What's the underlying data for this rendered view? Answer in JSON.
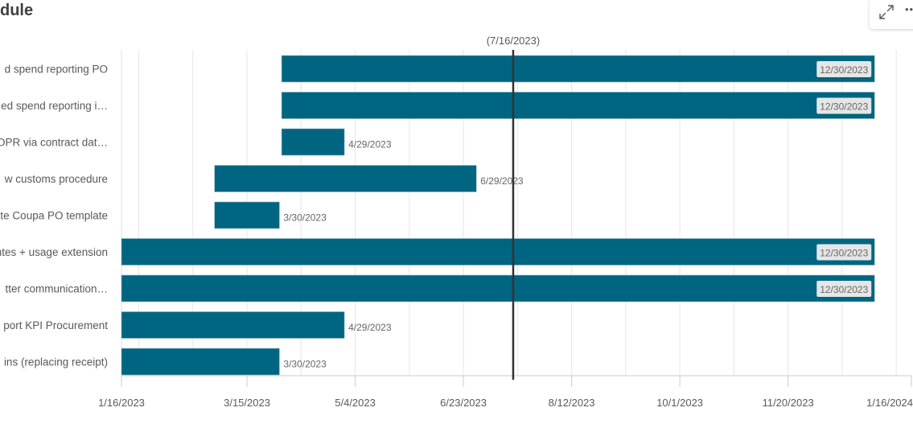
{
  "header": {
    "title": "dule"
  },
  "toolbar": {
    "icons": [
      "expand-icon",
      "more-icon"
    ],
    "more_glyph": "••"
  },
  "colors": {
    "bar": "#006580",
    "today_line": "#333333",
    "grid": "#e6e6e6",
    "inside_label_bg": "#e6e6e6"
  },
  "chart_data": {
    "type": "gantt",
    "x_axis": {
      "type": "date",
      "min": "2023-01-16",
      "max": "2024-01-16",
      "tick_labels": [
        "1/16/2023",
        "3/15/2023",
        "5/4/2023",
        "6/23/2023",
        "8/12/2023",
        "10/1/2023",
        "11/20/2023",
        "1/16/2024"
      ],
      "tick_dates": [
        "2023-01-16",
        "2023-03-15",
        "2023-05-04",
        "2023-06-23",
        "2023-08-12",
        "2023-10-01",
        "2023-11-20",
        "2024-01-16"
      ]
    },
    "today": {
      "date": "2023-07-16",
      "label": "(7/16/2023)"
    },
    "grid": true,
    "tasks": [
      {
        "label": "d spend reporting  PO",
        "start": "2023-03-31",
        "end": "2023-12-30",
        "end_label": "12/30/2023"
      },
      {
        "label": "ed spend reporting i…",
        "start": "2023-03-31",
        "end": "2023-12-30",
        "end_label": "12/30/2023"
      },
      {
        "label": "OPR via contract dat…",
        "start": "2023-03-31",
        "end": "2023-04-29",
        "end_label": "4/29/2023"
      },
      {
        "label": "w customs procedure",
        "start": "2023-02-28",
        "end": "2023-06-29",
        "end_label": "6/29/2023"
      },
      {
        "label": "te Coupa PO template",
        "start": "2023-02-28",
        "end": "2023-03-30",
        "end_label": "3/30/2023"
      },
      {
        "label": "ntes + usage extension",
        "start": "2023-01-16",
        "end": "2023-12-30",
        "end_label": "12/30/2023"
      },
      {
        "label": "tter communication…",
        "start": "2023-01-16",
        "end": "2023-12-30",
        "end_label": "12/30/2023"
      },
      {
        "label": "port KPI Procurement",
        "start": "2023-01-16",
        "end": "2023-04-29",
        "end_label": "4/29/2023"
      },
      {
        "label": "ins (replacing receipt)",
        "start": "2023-01-16",
        "end": "2023-03-30",
        "end_label": "3/30/2023"
      }
    ]
  }
}
